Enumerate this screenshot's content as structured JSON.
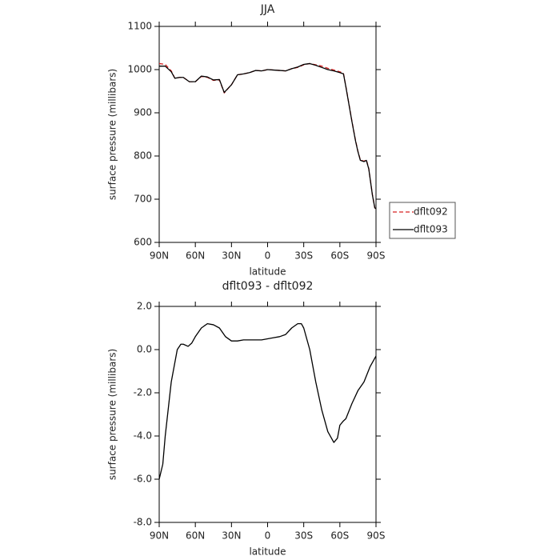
{
  "chart_data": [
    {
      "type": "line",
      "title": "JJA",
      "xlabel": "latitude",
      "ylabel": "surface pressure (millibars)",
      "x": [
        90,
        85,
        80,
        77,
        73,
        70,
        65,
        60,
        55,
        50,
        45,
        40,
        36,
        30,
        25,
        20,
        15,
        10,
        5,
        0,
        -5,
        -10,
        -15,
        -20,
        -25,
        -30,
        -35,
        -40,
        -45,
        -50,
        -55,
        -60,
        -63,
        -65,
        -70,
        -73,
        -75,
        -77,
        -80,
        -82,
        -84,
        -87,
        -89,
        -90
      ],
      "series": [
        {
          "name": "dflt092",
          "color": "#d62020",
          "linestyle": "dashed",
          "values": [
            1014,
            1012,
            997,
            980,
            982,
            982,
            972,
            972,
            984,
            982,
            975,
            976,
            946,
            965,
            988,
            990,
            993,
            998,
            997,
            1000,
            999,
            998,
            997,
            1002,
            1005,
            1011,
            1014,
            1011,
            1008,
            1003,
            999,
            995,
            991,
            961,
            881,
            836,
            811,
            791,
            788,
            791,
            771,
            711,
            680,
            678
          ]
        },
        {
          "name": "dflt093",
          "color": "#000000",
          "linestyle": "solid",
          "values": [
            1008,
            1008,
            995,
            980,
            982,
            982,
            972,
            972,
            985,
            983,
            976,
            977,
            947,
            965,
            988,
            990,
            993,
            998,
            997,
            1000,
            999,
            998,
            997,
            1002,
            1006,
            1012,
            1014,
            1010,
            1005,
            1000,
            997,
            993,
            990,
            960,
            880,
            835,
            810,
            790,
            787,
            790,
            770,
            710,
            680,
            678
          ]
        }
      ],
      "xlim": [
        90,
        -90
      ],
      "xticks": [
        {
          "value": 90,
          "label": "90N"
        },
        {
          "value": 60,
          "label": "60N"
        },
        {
          "value": 30,
          "label": "30N"
        },
        0,
        {
          "value": -30,
          "label": "30S"
        },
        {
          "value": -60,
          "label": "60S"
        },
        {
          "value": -90,
          "label": "90S"
        }
      ],
      "ylim": [
        600,
        1100
      ],
      "yticks": [
        600,
        700,
        800,
        900,
        1000,
        1100
      ],
      "legend": "right"
    },
    {
      "type": "line",
      "title": "dflt093 - dflt092",
      "xlabel": "latitude",
      "ylabel": "surface pressure (millibars)",
      "x": [
        90,
        87,
        85,
        80,
        75,
        72,
        70,
        66,
        63,
        60,
        55,
        50,
        45,
        40,
        35,
        30,
        25,
        20,
        15,
        10,
        5,
        0,
        -5,
        -10,
        -15,
        -20,
        -25,
        -28,
        -30,
        -35,
        -40,
        -45,
        -50,
        -55,
        -58,
        -60,
        -63,
        -65,
        -70,
        -75,
        -80,
        -85,
        -90
      ],
      "values": [
        -6.0,
        -5.3,
        -4.0,
        -1.5,
        0.0,
        0.25,
        0.25,
        0.15,
        0.3,
        0.6,
        1.0,
        1.2,
        1.15,
        1.0,
        0.6,
        0.4,
        0.4,
        0.45,
        0.45,
        0.45,
        0.45,
        0.5,
        0.55,
        0.6,
        0.7,
        1.0,
        1.2,
        1.2,
        1.0,
        0.0,
        -1.5,
        -2.8,
        -3.8,
        -4.3,
        -4.1,
        -3.5,
        -3.3,
        -3.2,
        -2.5,
        -1.9,
        -1.5,
        -0.8,
        -0.3
      ],
      "color": "#000000",
      "xlim": [
        90,
        -90
      ],
      "xticks": [
        {
          "value": 90,
          "label": "90N"
        },
        {
          "value": 60,
          "label": "60N"
        },
        {
          "value": 30,
          "label": "30N"
        },
        0,
        {
          "value": -30,
          "label": "30S"
        },
        {
          "value": -60,
          "label": "60S"
        },
        {
          "value": -90,
          "label": "90S"
        }
      ],
      "ylim": [
        -8,
        2
      ],
      "yticks": [
        {
          "value": -8,
          "label": "-8.0"
        },
        {
          "value": -6,
          "label": "-6.0"
        },
        {
          "value": -4,
          "label": "-4.0"
        },
        {
          "value": -2,
          "label": "-2.0"
        },
        {
          "value": 0,
          "label": "0.0"
        },
        {
          "value": 2,
          "label": "2.0"
        }
      ]
    }
  ]
}
